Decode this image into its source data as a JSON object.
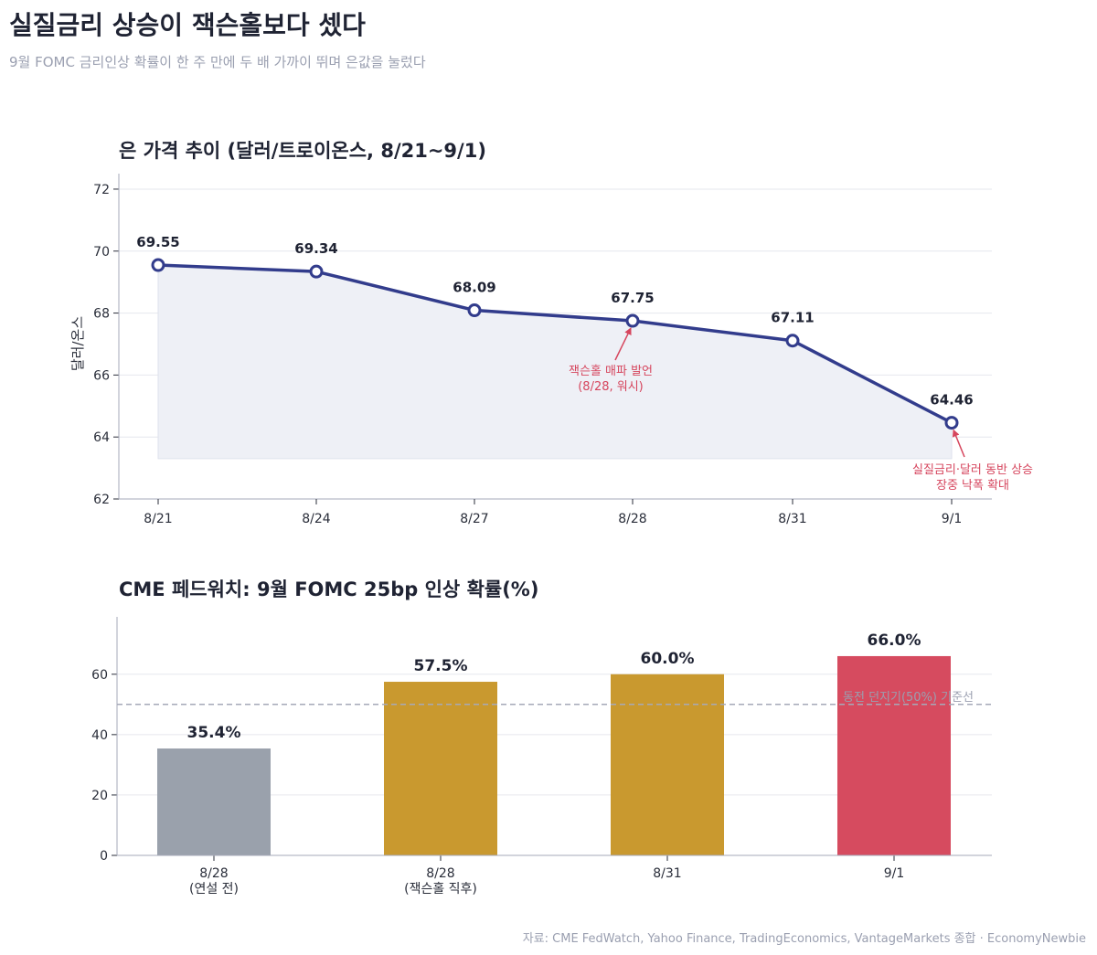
{
  "header": {
    "title": "실질금리 상승이 잭슨홀보다 셌다",
    "subtitle": "9월 FOMC 금리인상 확률이 한 주 만에 두 배 가까이 뛰며 은값을 눌렀다"
  },
  "footer": {
    "source": "자료: CME FedWatch, Yahoo Finance, TradingEconomics, VantageMarkets 종합 · EconomyNewbie"
  },
  "colors": {
    "line": "#323c8c",
    "area": "#eef0f6",
    "bar_gray": "#9aa1ac",
    "bar_gold": "#c9992f",
    "bar_red": "#d64b5f",
    "annotation": "#d6455d",
    "reference": "#a6a9b8",
    "grid": "#e6e7ee"
  },
  "chart_data": [
    {
      "type": "line",
      "title": "은 가격 추이 (달러/트로이온스, 8/21~9/1)",
      "ylabel": "달러/온스",
      "xlabel": "",
      "categories": [
        "8/21",
        "8/24",
        "8/27",
        "8/28",
        "8/31",
        "9/1"
      ],
      "values": [
        69.55,
        69.34,
        68.09,
        67.75,
        67.11,
        64.46
      ],
      "value_labels": [
        "69.55",
        "69.34",
        "68.09",
        "67.75",
        "67.11",
        "64.46"
      ],
      "ylim": [
        62,
        72.5
      ],
      "yticks": [
        62,
        64,
        66,
        68,
        70,
        72
      ],
      "ytick_labels": [
        "62",
        "64",
        "66",
        "68",
        "70",
        "72"
      ],
      "grid": true,
      "area_fill": true,
      "annotations": [
        {
          "target_index": 3,
          "lines": [
            "잭슨홀 매파 발언",
            "(8/28, 워시)"
          ]
        },
        {
          "target_index": 5,
          "lines": [
            "실질금리·달러 동반 상승",
            "장중 낙폭 확대"
          ]
        }
      ]
    },
    {
      "type": "bar",
      "title": "CME 페드워치: 9월 FOMC 25bp 인상 확률(%)",
      "xlabel": "",
      "ylabel": "",
      "categories": [
        [
          "8/28",
          "(연설 전)"
        ],
        [
          "8/28",
          "(잭슨홀 직후)"
        ],
        [
          "8/31"
        ],
        [
          "9/1"
        ]
      ],
      "values": [
        35.4,
        57.5,
        60.0,
        66.0
      ],
      "value_labels": [
        "35.4%",
        "57.5%",
        "60.0%",
        "66.0%"
      ],
      "bar_colors": [
        "gray",
        "gold",
        "gold",
        "red"
      ],
      "ylim": [
        0,
        79
      ],
      "yticks": [
        0,
        20,
        40,
        60
      ],
      "ytick_labels": [
        "0",
        "20",
        "40",
        "60"
      ],
      "grid": true,
      "reference_line": {
        "value": 50,
        "label": "동전 던지기(50%) 기준선"
      }
    }
  ]
}
